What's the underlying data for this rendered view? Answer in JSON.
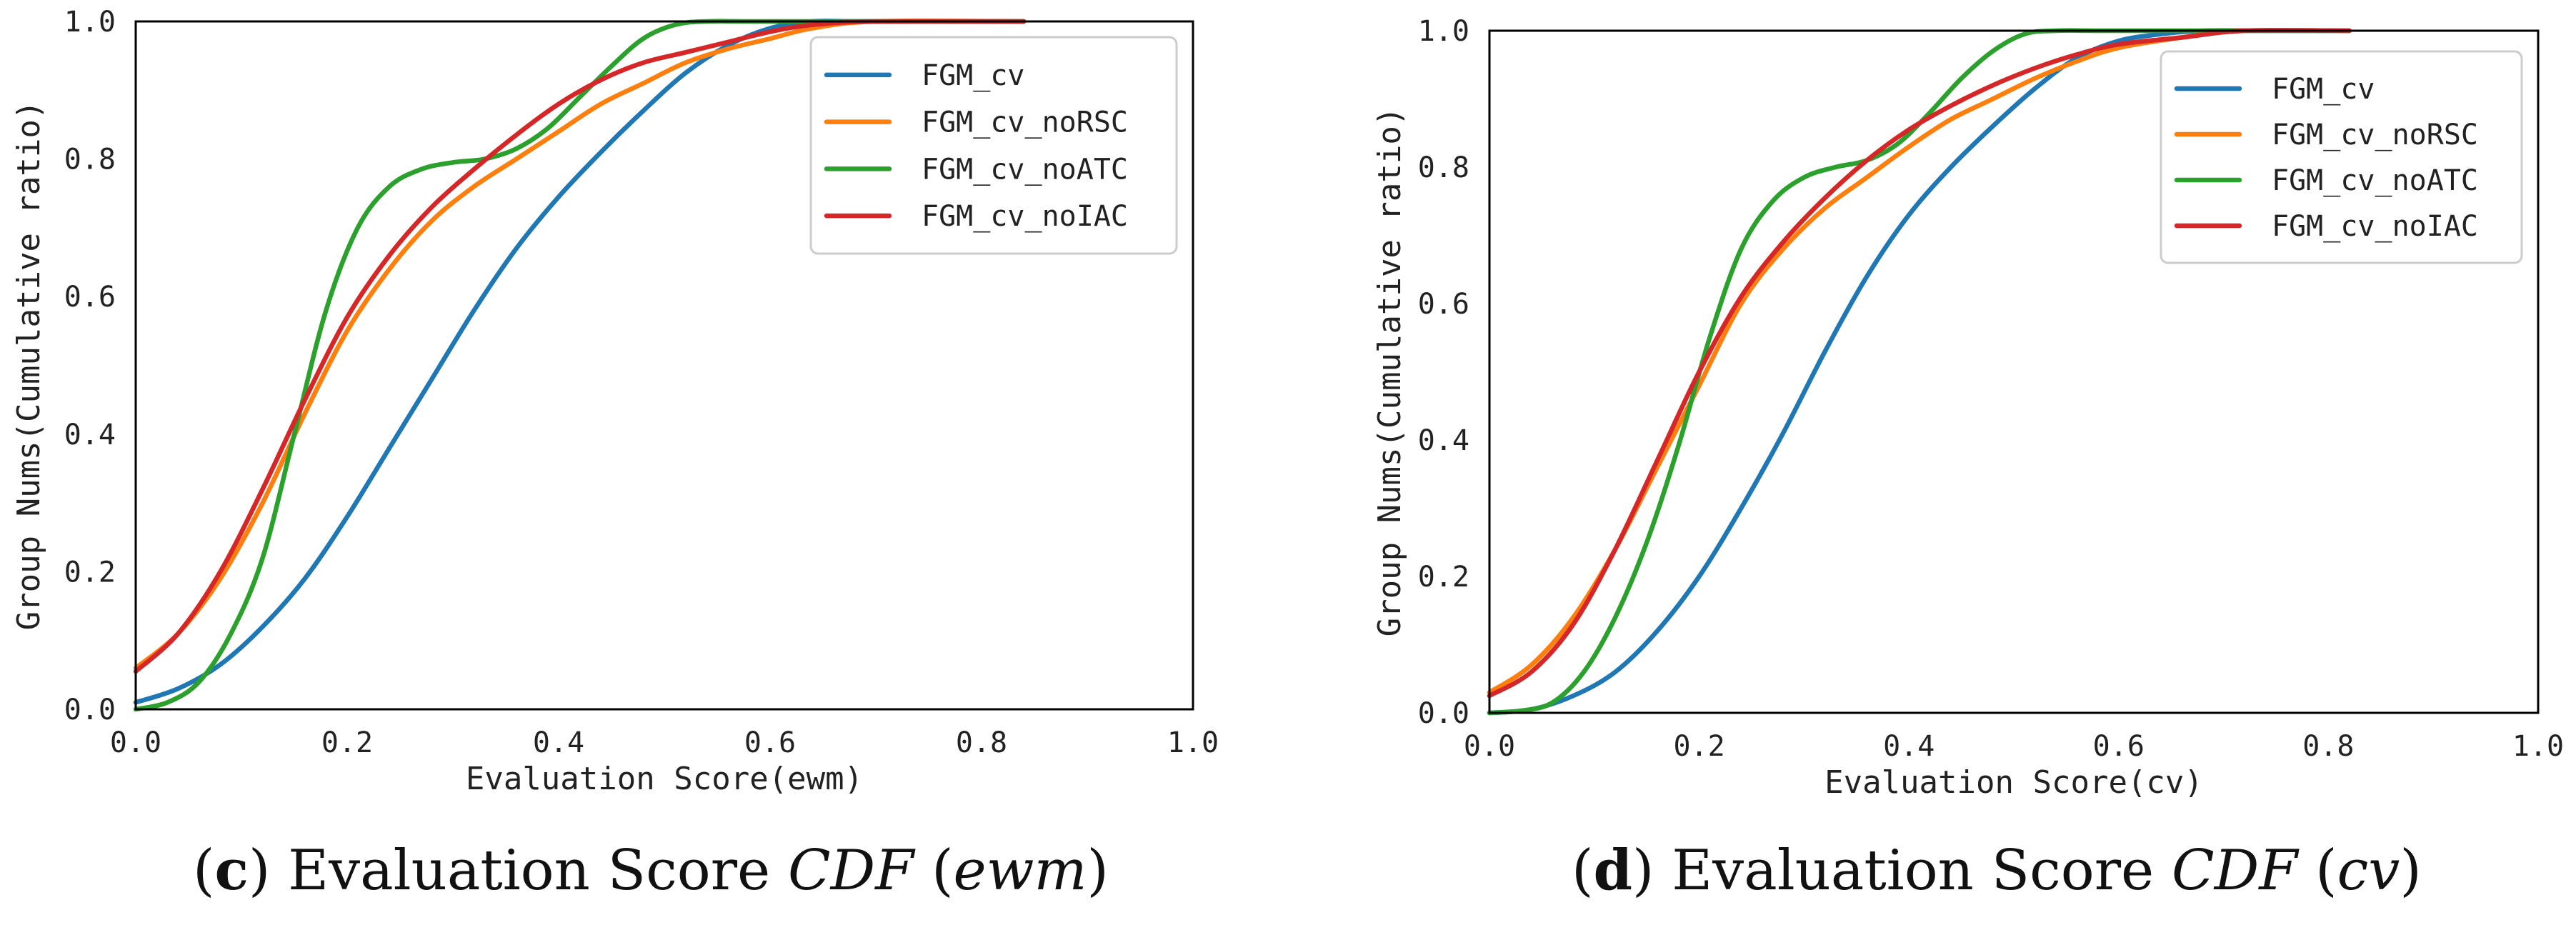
{
  "chart_data": [
    {
      "type": "line",
      "xlabel": "Evaluation Score(ewm)",
      "ylabel": "Group Nums(Cumulative ratio)",
      "xlim": [
        0,
        1
      ],
      "ylim": [
        0,
        1
      ],
      "xticks": [
        "0.0",
        "0.2",
        "0.4",
        "0.6",
        "0.8",
        "1.0"
      ],
      "yticks": [
        "0.0",
        "0.2",
        "0.4",
        "0.6",
        "0.8",
        "1.0"
      ],
      "grid": false,
      "legend_position": "top-right",
      "caption": {
        "letter": "c",
        "pre": "Evaluation Score ",
        "italic": "CDF",
        "open": " (",
        "italic2": "ewm",
        "close": ")"
      },
      "series": [
        {
          "name": "FGM_cv",
          "color": "#1f77b4",
          "x": [
            0,
            0.04,
            0.08,
            0.12,
            0.16,
            0.2,
            0.24,
            0.28,
            0.32,
            0.36,
            0.4,
            0.44,
            0.48,
            0.52,
            0.56,
            0.6,
            0.64,
            0.68,
            0.74,
            0.84
          ],
          "y": [
            0.01,
            0.03,
            0.065,
            0.12,
            0.19,
            0.28,
            0.38,
            0.48,
            0.58,
            0.67,
            0.745,
            0.81,
            0.87,
            0.925,
            0.965,
            0.99,
            1.0,
            1.0,
            1.0,
            1.0
          ]
        },
        {
          "name": "FGM_cv_noRSC",
          "color": "#ff7f0e",
          "x": [
            0,
            0.04,
            0.08,
            0.12,
            0.16,
            0.2,
            0.24,
            0.28,
            0.32,
            0.36,
            0.4,
            0.44,
            0.48,
            0.52,
            0.56,
            0.6,
            0.64,
            0.7,
            0.84
          ],
          "y": [
            0.06,
            0.11,
            0.19,
            0.3,
            0.43,
            0.55,
            0.64,
            0.71,
            0.76,
            0.8,
            0.84,
            0.88,
            0.91,
            0.94,
            0.96,
            0.975,
            0.99,
            1.0,
            1.0
          ]
        },
        {
          "name": "FGM_cv_noATC",
          "color": "#2ca02c",
          "x": [
            0,
            0.03,
            0.06,
            0.09,
            0.12,
            0.15,
            0.18,
            0.21,
            0.24,
            0.27,
            0.3,
            0.33,
            0.36,
            0.39,
            0.42,
            0.45,
            0.48,
            0.51,
            0.54,
            0.6,
            0.84
          ],
          "y": [
            0.0,
            0.01,
            0.04,
            0.11,
            0.22,
            0.4,
            0.58,
            0.7,
            0.76,
            0.785,
            0.795,
            0.8,
            0.815,
            0.845,
            0.89,
            0.935,
            0.975,
            0.995,
            1.0,
            1.0,
            1.0
          ]
        },
        {
          "name": "FGM_cv_noIAC",
          "color": "#d62728",
          "x": [
            0,
            0.04,
            0.08,
            0.12,
            0.16,
            0.2,
            0.24,
            0.28,
            0.32,
            0.36,
            0.4,
            0.44,
            0.48,
            0.52,
            0.56,
            0.6,
            0.64,
            0.7,
            0.84
          ],
          "y": [
            0.055,
            0.11,
            0.2,
            0.32,
            0.45,
            0.57,
            0.66,
            0.73,
            0.785,
            0.835,
            0.88,
            0.915,
            0.94,
            0.955,
            0.97,
            0.985,
            0.995,
            1.0,
            1.0
          ]
        }
      ]
    },
    {
      "type": "line",
      "xlabel": "Evaluation Score(cv)",
      "ylabel": "Group Nums(Cumulative ratio)",
      "xlim": [
        0,
        1
      ],
      "ylim": [
        0,
        1
      ],
      "xticks": [
        "0.0",
        "0.2",
        "0.4",
        "0.6",
        "0.8",
        "1.0"
      ],
      "yticks": [
        "0.0",
        "0.2",
        "0.4",
        "0.6",
        "0.8",
        "1.0"
      ],
      "grid": false,
      "legend_position": "top-right",
      "caption": {
        "letter": "d",
        "pre": "Evaluation Score ",
        "italic": "CDF",
        "open": " (",
        "italic2": "cv",
        "close": ")"
      },
      "series": [
        {
          "name": "FGM_cv",
          "color": "#1f77b4",
          "x": [
            0,
            0.04,
            0.08,
            0.12,
            0.16,
            0.2,
            0.24,
            0.28,
            0.32,
            0.36,
            0.4,
            0.44,
            0.48,
            0.52,
            0.56,
            0.6,
            0.64,
            0.68,
            0.74,
            0.82
          ],
          "y": [
            0.0,
            0.005,
            0.025,
            0.06,
            0.12,
            0.2,
            0.3,
            0.41,
            0.53,
            0.64,
            0.73,
            0.8,
            0.86,
            0.915,
            0.96,
            0.985,
            0.995,
            1.0,
            1.0,
            1.0
          ]
        },
        {
          "name": "FGM_cv_noRSC",
          "color": "#ff7f0e",
          "x": [
            0,
            0.04,
            0.08,
            0.12,
            0.16,
            0.2,
            0.24,
            0.28,
            0.32,
            0.36,
            0.4,
            0.44,
            0.48,
            0.52,
            0.56,
            0.6,
            0.66,
            0.72,
            0.82
          ],
          "y": [
            0.03,
            0.07,
            0.14,
            0.24,
            0.36,
            0.48,
            0.6,
            0.68,
            0.74,
            0.785,
            0.83,
            0.87,
            0.9,
            0.93,
            0.955,
            0.975,
            0.99,
            1.0,
            1.0
          ]
        },
        {
          "name": "FGM_cv_noATC",
          "color": "#2ca02c",
          "x": [
            0,
            0.03,
            0.06,
            0.09,
            0.12,
            0.15,
            0.18,
            0.21,
            0.24,
            0.27,
            0.3,
            0.33,
            0.36,
            0.39,
            0.42,
            0.45,
            0.48,
            0.51,
            0.54,
            0.6,
            0.82
          ],
          "y": [
            0.0,
            0.003,
            0.015,
            0.06,
            0.14,
            0.25,
            0.39,
            0.55,
            0.68,
            0.75,
            0.785,
            0.8,
            0.81,
            0.835,
            0.88,
            0.93,
            0.97,
            0.995,
            1.0,
            1.0,
            1.0
          ]
        },
        {
          "name": "FGM_cv_noIAC",
          "color": "#d62728",
          "x": [
            0,
            0.04,
            0.08,
            0.12,
            0.16,
            0.2,
            0.24,
            0.28,
            0.32,
            0.36,
            0.4,
            0.44,
            0.48,
            0.52,
            0.56,
            0.6,
            0.66,
            0.72,
            0.82
          ],
          "y": [
            0.025,
            0.06,
            0.13,
            0.24,
            0.37,
            0.5,
            0.61,
            0.69,
            0.755,
            0.81,
            0.855,
            0.89,
            0.92,
            0.945,
            0.965,
            0.98,
            0.99,
            1.0,
            1.0
          ]
        }
      ]
    }
  ]
}
